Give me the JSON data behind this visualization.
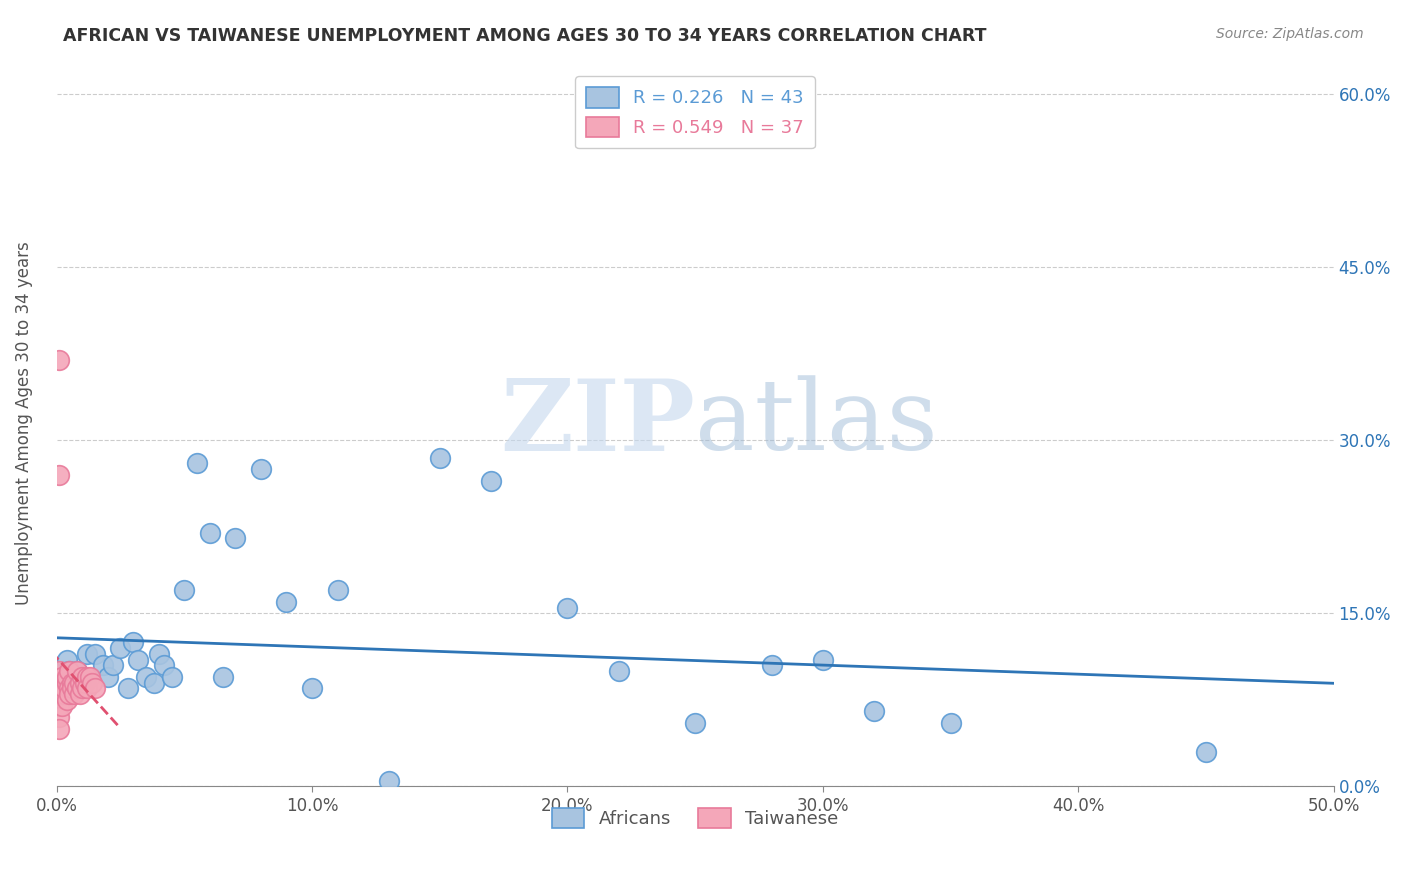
{
  "title": "AFRICAN VS TAIWANESE UNEMPLOYMENT AMONG AGES 30 TO 34 YEARS CORRELATION CHART",
  "source": "Source: ZipAtlas.com",
  "xlabel_ticks": [
    "0.0%",
    "10.0%",
    "20.0%",
    "30.0%",
    "40.0%",
    "50.0%"
  ],
  "ylabel_ticks": [
    "0.0%",
    "15.0%",
    "30.0%",
    "45.0%",
    "60.0%"
  ],
  "xlim": [
    0.0,
    0.5
  ],
  "ylim": [
    0.0,
    0.63
  ],
  "ylabel": "Unemployment Among Ages 30 to 34 years",
  "african_R": 0.226,
  "african_N": 43,
  "taiwanese_R": 0.549,
  "taiwanese_N": 37,
  "african_color": "#a8c4e0",
  "african_edge_color": "#5b9bd5",
  "taiwanese_color": "#f4a7b9",
  "taiwanese_edge_color": "#e87a9a",
  "african_trend_color": "#2e75b6",
  "taiwanese_trend_color": "#e05070",
  "watermark_zip": "ZIP",
  "watermark_atlas": "atlas",
  "african_x": [
    0.002,
    0.003,
    0.004,
    0.005,
    0.005,
    0.006,
    0.007,
    0.008,
    0.01,
    0.012,
    0.015,
    0.018,
    0.02,
    0.022,
    0.025,
    0.028,
    0.03,
    0.032,
    0.035,
    0.038,
    0.04,
    0.042,
    0.045,
    0.05,
    0.055,
    0.06,
    0.065,
    0.07,
    0.08,
    0.09,
    0.1,
    0.11,
    0.13,
    0.15,
    0.17,
    0.2,
    0.22,
    0.25,
    0.28,
    0.3,
    0.32,
    0.35,
    0.45
  ],
  "african_y": [
    0.1,
    0.09,
    0.11,
    0.085,
    0.1,
    0.095,
    0.085,
    0.1,
    0.09,
    0.115,
    0.115,
    0.105,
    0.095,
    0.105,
    0.12,
    0.085,
    0.125,
    0.11,
    0.095,
    0.09,
    0.115,
    0.105,
    0.095,
    0.17,
    0.28,
    0.22,
    0.095,
    0.215,
    0.275,
    0.16,
    0.085,
    0.17,
    0.005,
    0.285,
    0.265,
    0.155,
    0.1,
    0.055,
    0.105,
    0.11,
    0.065,
    0.055,
    0.03
  ],
  "taiwanese_x": [
    0.001,
    0.001,
    0.001,
    0.001,
    0.001,
    0.001,
    0.002,
    0.002,
    0.002,
    0.002,
    0.003,
    0.003,
    0.003,
    0.004,
    0.004,
    0.004,
    0.005,
    0.005,
    0.005,
    0.006,
    0.006,
    0.007,
    0.007,
    0.008,
    0.008,
    0.009,
    0.009,
    0.01,
    0.01,
    0.011,
    0.012,
    0.012,
    0.013,
    0.014,
    0.015,
    0.001,
    0.001
  ],
  "taiwanese_y": [
    0.08,
    0.07,
    0.06,
    0.05,
    0.09,
    0.1,
    0.095,
    0.085,
    0.08,
    0.07,
    0.09,
    0.08,
    0.085,
    0.075,
    0.09,
    0.095,
    0.1,
    0.085,
    0.08,
    0.09,
    0.085,
    0.08,
    0.09,
    0.1,
    0.085,
    0.09,
    0.08,
    0.095,
    0.085,
    0.09,
    0.095,
    0.085,
    0.095,
    0.09,
    0.085,
    0.37,
    0.27
  ]
}
